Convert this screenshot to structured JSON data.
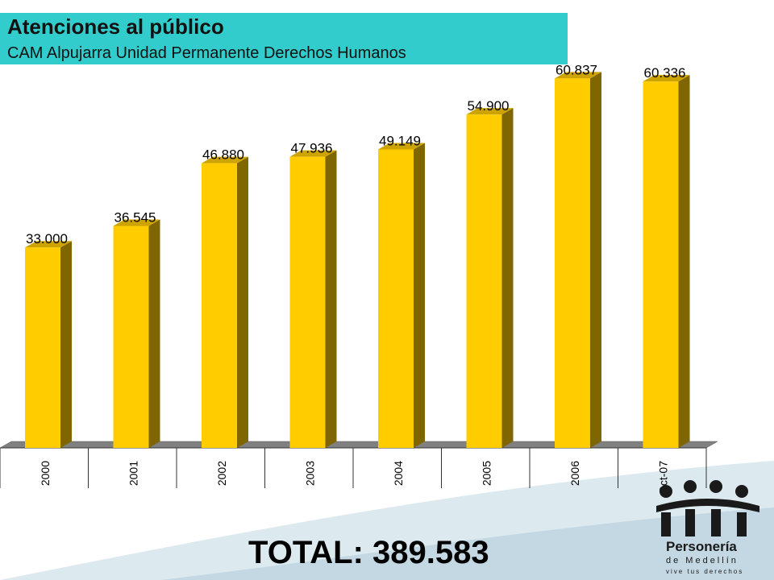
{
  "header": {
    "title": "Atenciones al público",
    "subtitle": "CAM Alpujarra Unidad Permanente Derechos Humanos"
  },
  "chart_data": {
    "type": "bar",
    "categories": [
      "2000",
      "2001",
      "2002",
      "2003",
      "2004",
      "2005",
      "2006",
      "Oct-07"
    ],
    "values": [
      33000,
      36545,
      46880,
      47936,
      49149,
      54900,
      60837,
      60336
    ],
    "value_labels": [
      "33.000",
      "36.545",
      "46.880",
      "47.936",
      "49.149",
      "54.900",
      "60.837",
      "60.336"
    ],
    "ylim": [
      0,
      65000
    ],
    "grid": false,
    "legend": "none",
    "colors": {
      "bar_front": "#ffcc00",
      "bar_side": "#806600",
      "bar_top": "#cca300",
      "floor": "#808080"
    }
  },
  "footer": {
    "total": "TOTAL: 389.583"
  },
  "logo": {
    "line1": "Personería",
    "line2": "de Medellín",
    "line3": "vive tus derechos"
  }
}
